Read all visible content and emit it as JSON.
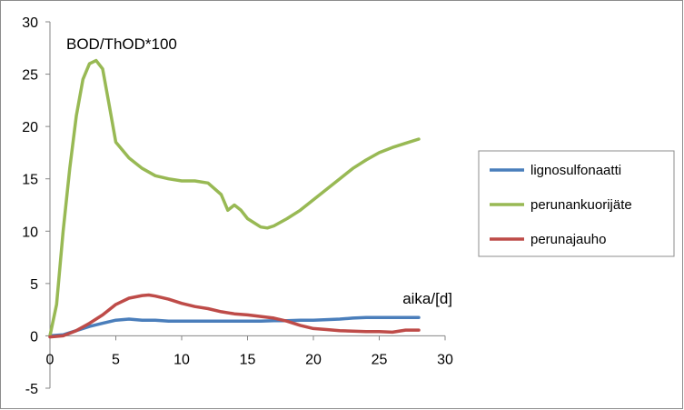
{
  "chart_data": {
    "type": "line",
    "title": "",
    "ylabel": "BOD/ThOD*100",
    "xlabel": "aika/[d]",
    "xlim": [
      0,
      30
    ],
    "ylim": [
      -5,
      30
    ],
    "x_ticks": [
      0,
      5,
      10,
      15,
      20,
      25,
      30
    ],
    "y_ticks": [
      -5,
      0,
      5,
      10,
      15,
      20,
      25,
      30
    ],
    "grid": false,
    "legend_position": "right",
    "series": [
      {
        "name": "lignosulfonaatti",
        "color": "#4a7ebb",
        "x": [
          0,
          1,
          2,
          3,
          4,
          5,
          6,
          7,
          8,
          9,
          10,
          11,
          12,
          13,
          14,
          15,
          16,
          17,
          18,
          19,
          20,
          21,
          22,
          23,
          24,
          25,
          26,
          27,
          28
        ],
        "y": [
          0,
          0.1,
          0.5,
          0.9,
          1.2,
          1.5,
          1.6,
          1.5,
          1.5,
          1.4,
          1.4,
          1.4,
          1.4,
          1.4,
          1.4,
          1.4,
          1.4,
          1.45,
          1.45,
          1.5,
          1.5,
          1.55,
          1.6,
          1.7,
          1.75,
          1.75,
          1.75,
          1.75,
          1.75
        ]
      },
      {
        "name": "perunankuorijäte",
        "color": "#98b954",
        "x": [
          0,
          0.5,
          1,
          1.5,
          2,
          2.5,
          3,
          3.5,
          4,
          4.5,
          5,
          6,
          7,
          8,
          9,
          10,
          11,
          12,
          13,
          13.5,
          14,
          14.5,
          15,
          15.5,
          16,
          16.5,
          17,
          18,
          19,
          20,
          21,
          22,
          23,
          24,
          25,
          26,
          27,
          28
        ],
        "y": [
          0,
          3,
          10,
          16,
          21,
          24.5,
          26,
          26.3,
          25.5,
          22,
          18.5,
          17,
          16,
          15.3,
          15,
          14.8,
          14.8,
          14.6,
          13.5,
          12,
          12.5,
          12,
          11.2,
          10.8,
          10.4,
          10.3,
          10.5,
          11.2,
          12,
          13,
          14,
          15,
          16,
          16.8,
          17.5,
          18,
          18.4,
          18.8
        ]
      },
      {
        "name": "perunajauho",
        "color": "#be4b48",
        "x": [
          0,
          1,
          2,
          3,
          4,
          5,
          6,
          7,
          7.5,
          8,
          9,
          10,
          11,
          12,
          13,
          14,
          15,
          16,
          17,
          18,
          19,
          20,
          21,
          22,
          23,
          24,
          25,
          26,
          27,
          28
        ],
        "y": [
          -0.1,
          0,
          0.5,
          1.2,
          2,
          3,
          3.6,
          3.85,
          3.9,
          3.8,
          3.5,
          3.1,
          2.8,
          2.6,
          2.3,
          2.1,
          2.0,
          1.85,
          1.7,
          1.4,
          1.0,
          0.7,
          0.6,
          0.5,
          0.45,
          0.4,
          0.4,
          0.35,
          0.55,
          0.55
        ]
      }
    ]
  }
}
